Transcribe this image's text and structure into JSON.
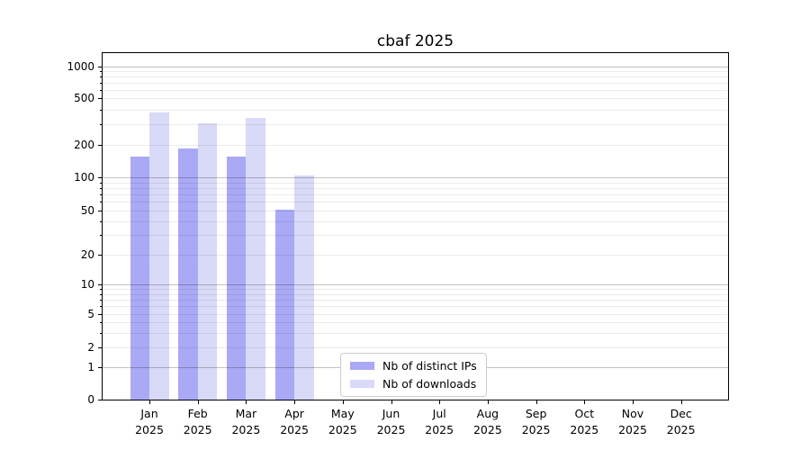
{
  "title": "cbaf 2025",
  "legend": {
    "items": [
      {
        "label": "Nb of distinct IPs",
        "color": "#a9a9f5"
      },
      {
        "label": "Nb of downloads",
        "color": "#d9d9f8"
      }
    ]
  },
  "chart_data": {
    "type": "bar",
    "title": "cbaf 2025",
    "categories": [
      "Jan 2025",
      "Feb 2025",
      "Mar 2025",
      "Apr 2025",
      "May 2025",
      "Jun 2025",
      "Jul 2025",
      "Aug 2025",
      "Sep 2025",
      "Oct 2025",
      "Nov 2025",
      "Dec 2025"
    ],
    "series": [
      {
        "name": "Nb of distinct IPs",
        "color": "#a9a9f5",
        "values": [
          155,
          185,
          155,
          51,
          null,
          null,
          null,
          null,
          null,
          null,
          null,
          null
        ]
      },
      {
        "name": "Nb of downloads",
        "color": "#d9d9f8",
        "values": [
          380,
          305,
          340,
          103,
          null,
          null,
          null,
          null,
          null,
          null,
          null,
          null
        ]
      }
    ],
    "xlabel": "",
    "ylabel": "",
    "yscale": "symlog",
    "yticks": [
      0,
      1,
      2,
      5,
      10,
      20,
      50,
      100,
      200,
      500,
      1000
    ],
    "ylim": [
      0,
      1350
    ],
    "grid": "horizontal major+minor",
    "legend_position": "inside lower center"
  }
}
